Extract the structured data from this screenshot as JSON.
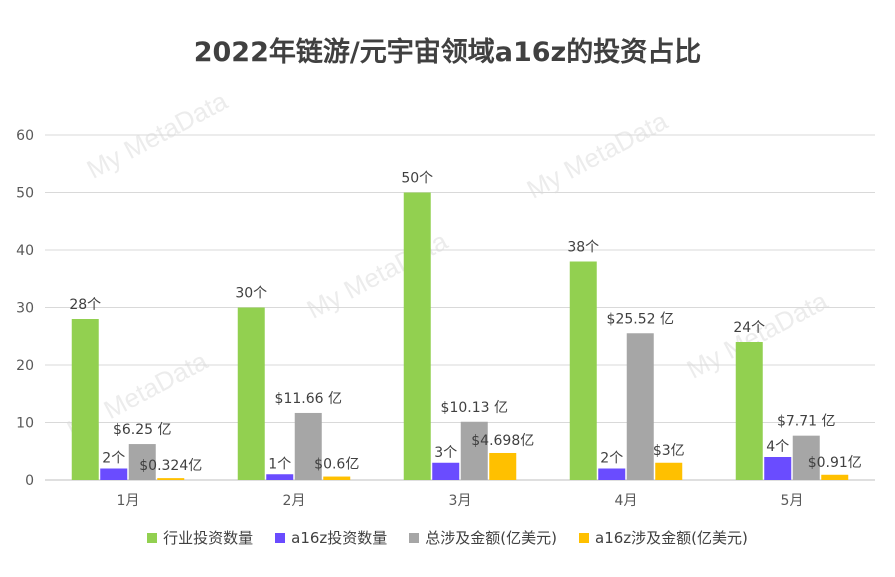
{
  "watermark": "My MetaData",
  "chart_data": {
    "type": "bar",
    "title": "2022年链游/元宇宙领域a16z的投资占比",
    "categories": [
      "1月",
      "2月",
      "3月",
      "4月",
      "5月"
    ],
    "ylim": [
      0,
      60
    ],
    "yticks": [
      0,
      10,
      20,
      30,
      40,
      50,
      60
    ],
    "grid": true,
    "legend_position": "bottom",
    "series": [
      {
        "name": "行业投资数量",
        "color": "#92d050",
        "values": [
          28,
          30,
          50,
          38,
          24
        ],
        "labels": [
          "28个",
          "30个",
          "50个",
          "38个",
          "24个"
        ]
      },
      {
        "name": "a16z投资数量",
        "color": "#6a4cff",
        "values": [
          2,
          1,
          3,
          2,
          4
        ],
        "labels": [
          "2个",
          "1个",
          "3个",
          "2个",
          "4个"
        ]
      },
      {
        "name": "总涉及金额(亿美元)",
        "color": "#a6a6a6",
        "values": [
          6.25,
          11.66,
          10.13,
          25.52,
          7.71
        ],
        "labels": [
          "$6.25 亿",
          "$11.66 亿",
          "$10.13 亿",
          "$25.52 亿",
          "$7.71 亿"
        ]
      },
      {
        "name": "a16z涉及金额(亿美元)",
        "color": "#ffc000",
        "values": [
          0.324,
          0.6,
          4.698,
          3,
          0.91
        ],
        "labels": [
          "$0.324亿",
          "$0.6亿",
          "$4.698亿",
          "$3亿",
          "$0.91亿"
        ]
      }
    ]
  }
}
